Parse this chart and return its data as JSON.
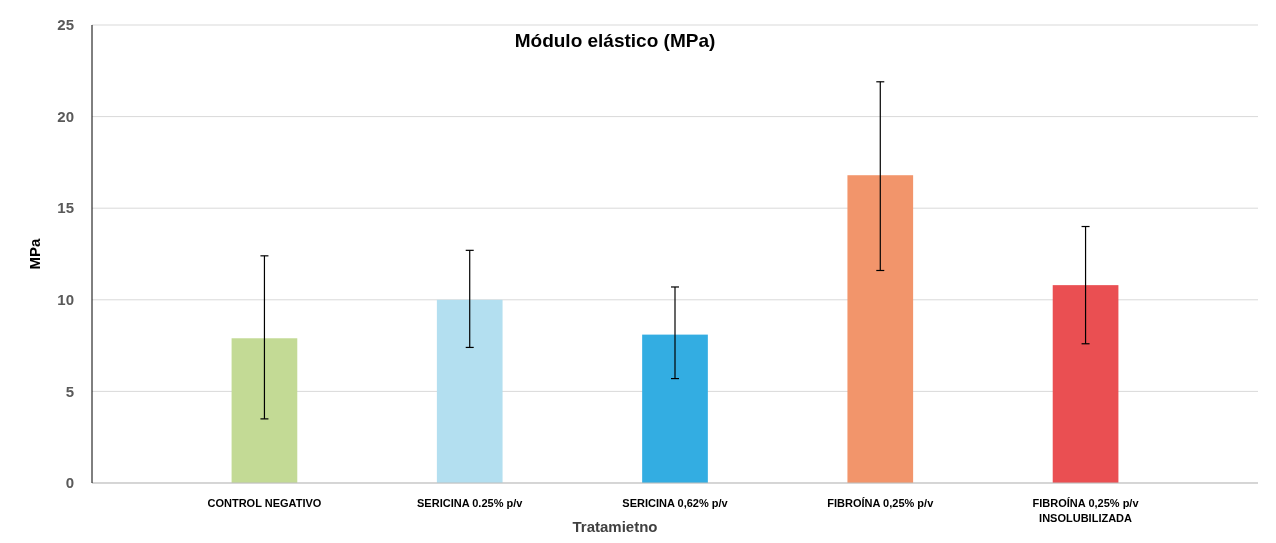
{
  "chart_data": {
    "type": "bar",
    "title": "Módulo elástico (MPa)",
    "xlabel": "Tratamietno",
    "ylabel": "MPa",
    "categories": [
      "CONTROL NEGATIVO",
      "SERICINA 0.25% p/v",
      "SERICINA 0,62% p/v",
      "FIBROÍNA 0,25% p/v",
      "FIBROÍNA 0,25% p/v\nINSOLUBILIZADA"
    ],
    "values": [
      7.9,
      10.0,
      8.1,
      16.8,
      10.8
    ],
    "colors": [
      "#c3da95",
      "#b3dff0",
      "#33ade2",
      "#f2956b",
      "#ea4f52"
    ],
    "errors": [
      [
        3.5,
        12.4
      ],
      [
        7.4,
        12.7
      ],
      [
        5.7,
        10.7
      ],
      [
        11.6,
        21.9
      ],
      [
        7.6,
        14.0
      ]
    ],
    "ylim": [
      0,
      25
    ],
    "yticks": [
      0,
      5,
      10,
      15,
      20,
      25
    ],
    "grid": "y"
  }
}
